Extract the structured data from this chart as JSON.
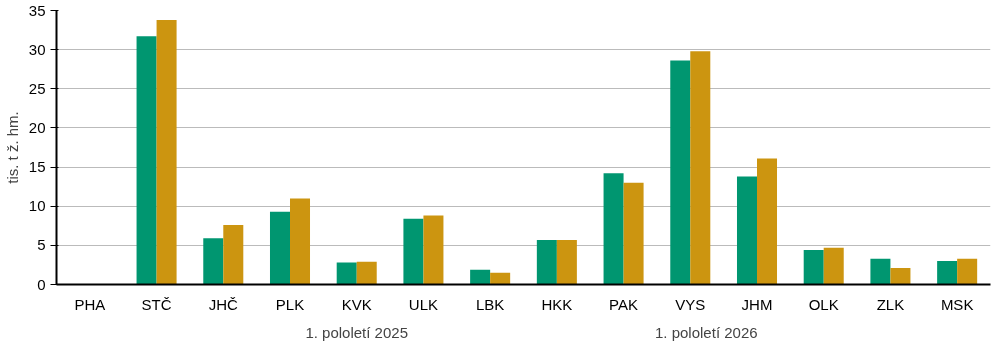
{
  "chart_data": {
    "type": "bar",
    "ylabel": "tis. t ž. hm.",
    "categories": [
      "PHA",
      "STČ",
      "JHČ",
      "PLK",
      "KVK",
      "ULK",
      "LBK",
      "HKK",
      "PAK",
      "VYS",
      "JHM",
      "OLK",
      "ZLK",
      "MSK"
    ],
    "series": [
      {
        "name": "1. pololetí 2025",
        "color": "#009670",
        "values": [
          null,
          31.7,
          5.9,
          9.3,
          2.8,
          8.4,
          1.9,
          5.7,
          14.2,
          28.6,
          13.8,
          4.4,
          3.3,
          3.0
        ]
      },
      {
        "name": "1. pololetí 2026",
        "color": "#cc9510",
        "values": [
          null,
          33.8,
          7.6,
          11.0,
          2.9,
          8.8,
          1.5,
          5.7,
          13.0,
          29.8,
          16.1,
          4.7,
          2.1,
          3.3
        ]
      }
    ],
    "ylim": [
      0,
      35
    ],
    "yticks": [
      0,
      5,
      10,
      15,
      20,
      25,
      30,
      35
    ],
    "grid": "y",
    "legend": "bottom"
  }
}
